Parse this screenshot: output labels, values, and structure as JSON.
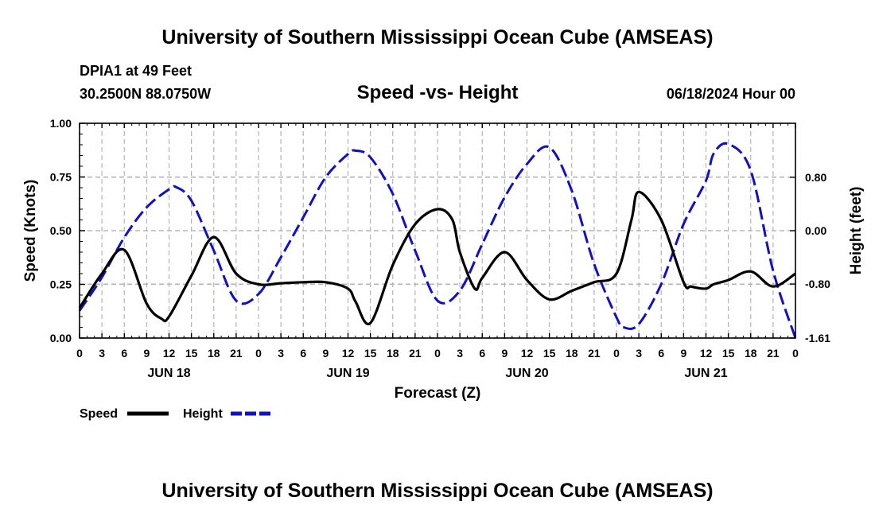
{
  "header": {
    "title": "University of Southern Mississippi Ocean Cube (AMSEAS)",
    "station": "DPIA1 at 49 Feet",
    "location": "30.2500N  88.0750W",
    "forecast_time": "06/18/2024 Hour 00"
  },
  "footer": {
    "title": "University of Southern Mississippi Ocean Cube (AMSEAS)"
  },
  "chart_data": {
    "type": "line",
    "title": "Speed -vs- Height",
    "xlabel": "Forecast (Z)",
    "ylabel": "Speed (Knots)",
    "y2label": "Height (feet)",
    "x_range": [
      0,
      96
    ],
    "ylim": [
      0,
      1
    ],
    "y2lim": [
      -1.61,
      1.61
    ],
    "x_tick_labels": [
      "0",
      "3",
      "6",
      "9",
      "12",
      "15",
      "18",
      "21",
      "0",
      "3",
      "6",
      "9",
      "12",
      "15",
      "18",
      "21",
      "0",
      "3",
      "6",
      "9",
      "12",
      "15",
      "18",
      "21",
      "0",
      "3",
      "6",
      "9",
      "12",
      "15",
      "18",
      "21",
      "0"
    ],
    "day_labels": [
      {
        "x": 12,
        "label": "JUN 18"
      },
      {
        "x": 36,
        "label": "JUN 19"
      },
      {
        "x": 60,
        "label": "JUN 20"
      },
      {
        "x": 84,
        "label": "JUN 21"
      }
    ],
    "y_ticks": [
      0,
      0.25,
      0.5,
      0.75,
      1.0
    ],
    "y_tick_labels": [
      "0.00",
      "0.25",
      "0.50",
      "0.75",
      "1.00"
    ],
    "y2_ticks": [
      -1.61,
      -0.8,
      0.0,
      0.8
    ],
    "y2_tick_labels": [
      "-1.61",
      "-0.80",
      "0.00",
      "0.80"
    ],
    "legend": [
      {
        "name": "Speed",
        "color": "#000000",
        "dash": "solid"
      },
      {
        "name": "Height",
        "color": "#1010c8",
        "dash": "dashed"
      }
    ],
    "series": [
      {
        "name": "Speed",
        "axis": "left",
        "color": "#000000",
        "x": [
          0,
          3,
          6,
          9,
          11,
          12,
          15,
          18,
          21,
          24,
          27,
          30,
          33,
          36,
          37,
          39,
          42,
          45,
          48,
          50,
          51,
          53,
          54,
          57,
          60,
          63,
          66,
          69,
          72,
          74,
          75,
          78,
          81,
          82,
          84,
          85,
          87,
          90,
          93,
          96
        ],
        "y": [
          0.14,
          0.3,
          0.41,
          0.16,
          0.09,
          0.1,
          0.29,
          0.47,
          0.3,
          0.25,
          0.255,
          0.26,
          0.26,
          0.23,
          0.17,
          0.07,
          0.34,
          0.53,
          0.6,
          0.55,
          0.4,
          0.23,
          0.28,
          0.4,
          0.27,
          0.18,
          0.22,
          0.26,
          0.3,
          0.55,
          0.68,
          0.55,
          0.26,
          0.24,
          0.23,
          0.25,
          0.27,
          0.31,
          0.24,
          0.3
        ]
      },
      {
        "name": "Height",
        "axis": "right",
        "color": "#1010c8",
        "x": [
          0,
          3,
          6,
          9,
          12,
          13,
          15,
          18,
          21,
          24,
          27,
          30,
          33,
          36,
          37,
          39,
          42,
          45,
          48,
          51,
          54,
          57,
          60,
          63,
          66,
          69,
          72,
          73,
          75,
          78,
          81,
          84,
          85,
          87,
          90,
          93,
          96
        ],
        "y": [
          -1.2,
          -0.7,
          -0.1,
          0.35,
          0.62,
          0.65,
          0.45,
          -0.3,
          -1.05,
          -0.95,
          -0.4,
          0.2,
          0.8,
          1.15,
          1.2,
          1.1,
          0.55,
          -0.3,
          -1.05,
          -0.9,
          -0.2,
          0.5,
          1.0,
          1.25,
          0.6,
          -0.5,
          -1.3,
          -1.45,
          -1.4,
          -0.8,
          0.1,
          0.75,
          1.15,
          1.3,
          0.9,
          -0.6,
          -1.61
        ]
      }
    ]
  }
}
